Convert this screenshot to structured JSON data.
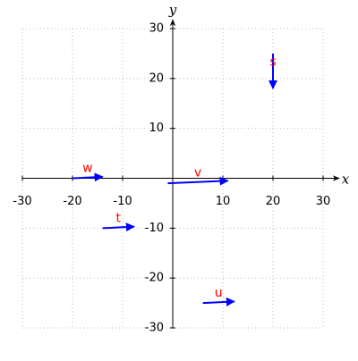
{
  "chart_data": {
    "type": "vector",
    "x_label": "x",
    "y_label": "y",
    "xlim": [
      -30,
      30
    ],
    "ylim": [
      -30,
      30
    ],
    "xticks": [
      -30,
      -20,
      -10,
      10,
      20,
      30
    ],
    "yticks": [
      -30,
      -20,
      -10,
      10,
      20,
      30
    ],
    "grid": true,
    "color": "#0000ff",
    "label_color": "#ff0000",
    "vectors": [
      {
        "label": "s",
        "x": 20,
        "y": 25,
        "dx": 0,
        "dy": -7
      },
      {
        "label": "v",
        "x": -1,
        "y": -1,
        "dx": 12,
        "dy": 0.5
      },
      {
        "label": "w",
        "x": -20,
        "y": 0,
        "dx": 6,
        "dy": 0.3
      },
      {
        "label": "t",
        "x": -14,
        "y": -10,
        "dx": 6.3,
        "dy": 0.3
      },
      {
        "label": "u",
        "x": 6,
        "y": -25,
        "dx": 6.3,
        "dy": 0.3
      }
    ]
  }
}
